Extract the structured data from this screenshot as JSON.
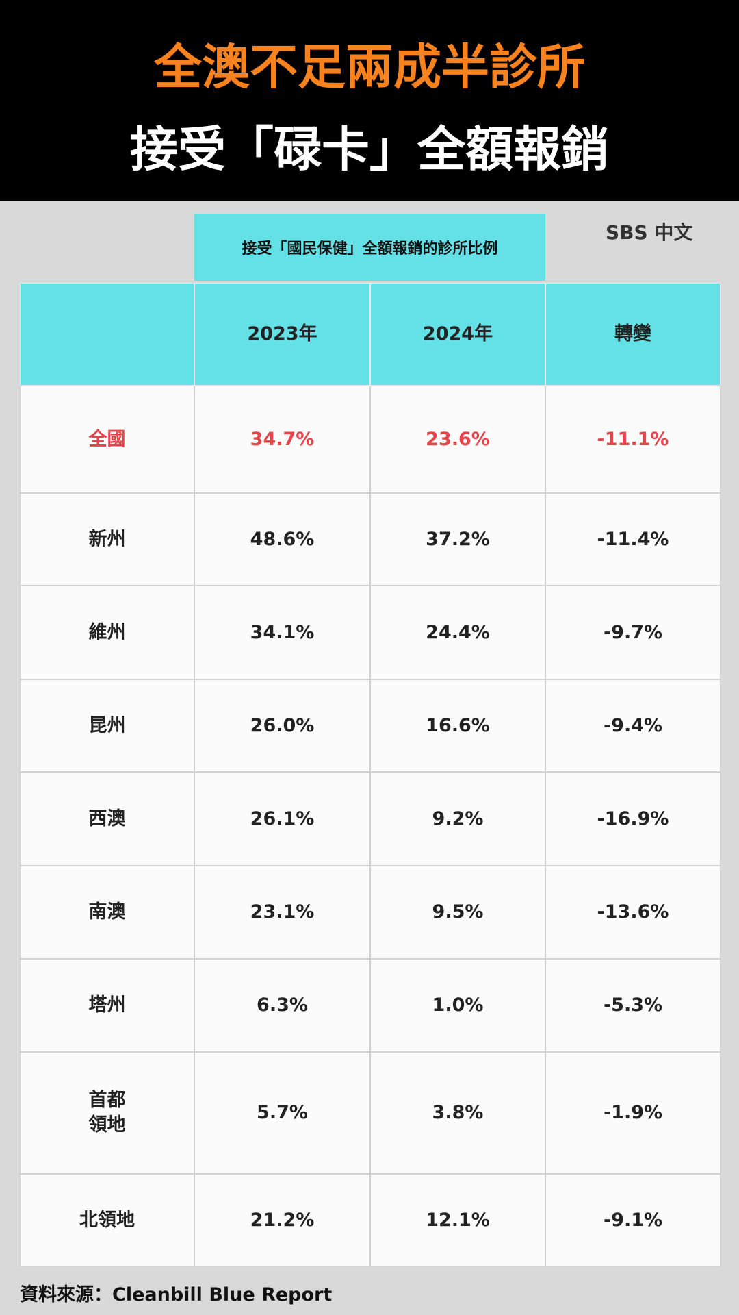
{
  "header": {
    "title_line1": "全澳不足兩成半診所",
    "title_line2": "接受「碌卡」全額報銷"
  },
  "logo": "SBS 中文",
  "table": {
    "caption": "接受「國民保健」全額報銷的診所比例",
    "columns": [
      "2023年",
      "2024年",
      "轉變"
    ],
    "rows": [
      [
        "全國",
        "34.7%",
        "23.6%",
        "-11.1%"
      ],
      [
        "新州",
        "48.6%",
        "37.2%",
        "-11.4%"
      ],
      [
        "維州",
        "34.1%",
        "24.4%",
        "-9.7%"
      ],
      [
        "昆州",
        "26.0%",
        "16.6%",
        "-9.4%"
      ],
      [
        "西澳",
        "26.1%",
        "9.2%",
        "-16.9%"
      ],
      [
        "南澳",
        "23.1%",
        "9.5%",
        "-13.6%"
      ],
      [
        "塔州",
        "6.3%",
        "1.0%",
        "-5.3%"
      ],
      [
        "首都\n領地",
        "5.7%",
        "3.8%",
        "-1.9%"
      ],
      [
        "北領地",
        "21.2%",
        "12.1%",
        "-9.1%"
      ]
    ]
  },
  "source": "資料來源：Cleanbill Blue Report"
}
